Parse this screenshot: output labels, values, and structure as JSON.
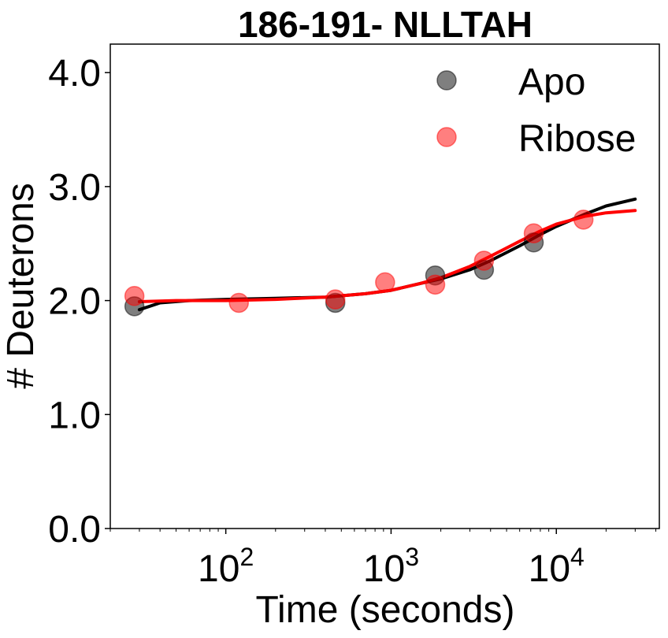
{
  "chart_data": {
    "type": "scatter",
    "title": "186-191- NLLTAH",
    "xlabel": "Time (seconds)",
    "ylabel": "# Deuterons",
    "xscale": "log",
    "xlim": [
      20,
      42000
    ],
    "ylim": [
      0,
      4.25
    ],
    "yticks": [
      {
        "value": 0.0,
        "label": "0.0"
      },
      {
        "value": 1.0,
        "label": "1.0"
      },
      {
        "value": 2.0,
        "label": "2.0"
      },
      {
        "value": 3.0,
        "label": "3.0"
      },
      {
        "value": 4.0,
        "label": "4.0"
      }
    ],
    "xticks": [
      {
        "value": 100,
        "base": "10",
        "exp": "2"
      },
      {
        "value": 1000,
        "base": "10",
        "exp": "3"
      },
      {
        "value": 10000,
        "base": "10",
        "exp": "4"
      }
    ],
    "legend_position": "top-right",
    "grid": false,
    "series": [
      {
        "name": "Apo",
        "color": "#000000",
        "points": [
          {
            "x": 28,
            "y": 1.95
          },
          {
            "x": 460,
            "y": 1.98
          },
          {
            "x": 1850,
            "y": 2.22
          },
          {
            "x": 3650,
            "y": 2.27
          },
          {
            "x": 7300,
            "y": 2.51
          }
        ],
        "fit": [
          {
            "x": 30,
            "y": 1.92
          },
          {
            "x": 40,
            "y": 1.98
          },
          {
            "x": 60,
            "y": 2.0
          },
          {
            "x": 100,
            "y": 2.01
          },
          {
            "x": 200,
            "y": 2.02
          },
          {
            "x": 400,
            "y": 2.03
          },
          {
            "x": 700,
            "y": 2.06
          },
          {
            "x": 1000,
            "y": 2.09
          },
          {
            "x": 1500,
            "y": 2.15
          },
          {
            "x": 2000,
            "y": 2.19
          },
          {
            "x": 3000,
            "y": 2.27
          },
          {
            "x": 4000,
            "y": 2.35
          },
          {
            "x": 6000,
            "y": 2.48
          },
          {
            "x": 8000,
            "y": 2.58
          },
          {
            "x": 10000,
            "y": 2.65
          },
          {
            "x": 15000,
            "y": 2.76
          },
          {
            "x": 20000,
            "y": 2.83
          },
          {
            "x": 30000,
            "y": 2.89
          }
        ]
      },
      {
        "name": "Ribose",
        "color": "#ff0000",
        "points": [
          {
            "x": 28,
            "y": 2.04
          },
          {
            "x": 120,
            "y": 1.98
          },
          {
            "x": 460,
            "y": 2.01
          },
          {
            "x": 920,
            "y": 2.16
          },
          {
            "x": 1850,
            "y": 2.14
          },
          {
            "x": 3650,
            "y": 2.35
          },
          {
            "x": 7300,
            "y": 2.59
          },
          {
            "x": 14600,
            "y": 2.71
          }
        ],
        "fit": [
          {
            "x": 30,
            "y": 1.99
          },
          {
            "x": 50,
            "y": 2.0
          },
          {
            "x": 100,
            "y": 2.0
          },
          {
            "x": 200,
            "y": 2.01
          },
          {
            "x": 400,
            "y": 2.03
          },
          {
            "x": 700,
            "y": 2.06
          },
          {
            "x": 1000,
            "y": 2.09
          },
          {
            "x": 1500,
            "y": 2.15
          },
          {
            "x": 2000,
            "y": 2.2
          },
          {
            "x": 3000,
            "y": 2.3
          },
          {
            "x": 4000,
            "y": 2.39
          },
          {
            "x": 6000,
            "y": 2.52
          },
          {
            "x": 8000,
            "y": 2.61
          },
          {
            "x": 10000,
            "y": 2.67
          },
          {
            "x": 15000,
            "y": 2.74
          },
          {
            "x": 20000,
            "y": 2.77
          },
          {
            "x": 30000,
            "y": 2.79
          }
        ]
      }
    ]
  }
}
